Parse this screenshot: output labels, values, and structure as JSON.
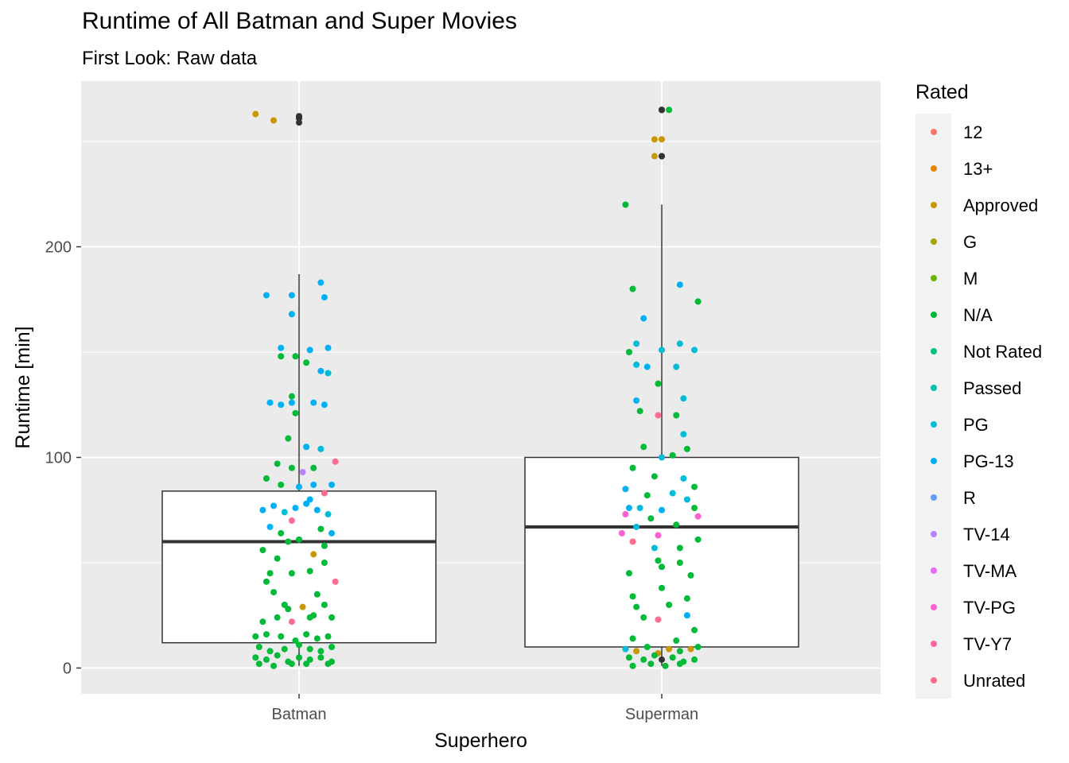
{
  "chart_data": {
    "type": "scatter",
    "subtype": "boxplot-with-jitter",
    "title": "Runtime of All Batman and Super Movies",
    "subtitle": "First Look: Raw data",
    "xlabel": "Superhero",
    "ylabel": "Runtime [min]",
    "categories": [
      "Batman",
      "Superman"
    ],
    "y_ticks": [
      0,
      100,
      200
    ],
    "ylim": [
      -12,
      276
    ],
    "grid": true,
    "legend": {
      "title": "Rated",
      "position": "right",
      "entries": [
        "12",
        "13+",
        "Approved",
        "G",
        "M",
        "N/A",
        "Not Rated",
        "Passed",
        "PG",
        "PG-13",
        "R",
        "TV-14",
        "TV-MA",
        "TV-PG",
        "TV-Y7",
        "Unrated"
      ],
      "colors": [
        "#F8766D",
        "#E58700",
        "#C99800",
        "#A3A500",
        "#6BB100",
        "#00BA38",
        "#00BF7D",
        "#00C0AF",
        "#00BCD8",
        "#00B0F6",
        "#619CFF",
        "#B983FF",
        "#E76BF3",
        "#FD61D1",
        "#FF67A4",
        "#FF6C91"
      ]
    },
    "boxplots": [
      {
        "category": "Batman",
        "q1": 12,
        "median": 60,
        "q3": 84,
        "whisker_low": 1,
        "whisker_high": 187,
        "outliers": [
          262,
          262,
          259
        ]
      },
      {
        "category": "Superman",
        "q1": 10,
        "median": 67,
        "q3": 100,
        "whisker_low": 1,
        "whisker_high": 220,
        "outliers": [
          265,
          265,
          243
        ]
      }
    ],
    "series": [
      {
        "category": "Batman",
        "points": [
          [
            -0.12,
            263,
            "Approved"
          ],
          [
            -0.07,
            260,
            "Approved"
          ],
          [
            0.0,
            261,
            "NA"
          ],
          [
            0.06,
            183,
            "PG-13"
          ],
          [
            -0.09,
            177,
            "PG-13"
          ],
          [
            -0.02,
            177,
            "PG-13"
          ],
          [
            0.07,
            176,
            "PG-13"
          ],
          [
            -0.02,
            168,
            "PG-13"
          ],
          [
            -0.05,
            152,
            "PG-13"
          ],
          [
            0.03,
            151,
            "PG-13"
          ],
          [
            0.08,
            152,
            "PG-13"
          ],
          [
            -0.05,
            148,
            "N/A"
          ],
          [
            -0.01,
            148,
            "N/A"
          ],
          [
            0.02,
            145,
            "N/A"
          ],
          [
            0.06,
            141,
            "PG-13"
          ],
          [
            0.08,
            140,
            "PG"
          ],
          [
            -0.08,
            126,
            "PG-13"
          ],
          [
            -0.05,
            125,
            "PG-13"
          ],
          [
            -0.02,
            126,
            "PG-13"
          ],
          [
            0.04,
            126,
            "PG-13"
          ],
          [
            0.07,
            125,
            "PG-13"
          ],
          [
            -0.02,
            129,
            "N/A"
          ],
          [
            -0.01,
            121,
            "N/A"
          ],
          [
            -0.03,
            109,
            "N/A"
          ],
          [
            0.02,
            105,
            "PG-13"
          ],
          [
            0.06,
            104,
            "PG"
          ],
          [
            0.1,
            98,
            "Unrated"
          ],
          [
            -0.06,
            97,
            "N/A"
          ],
          [
            -0.02,
            95,
            "N/A"
          ],
          [
            0.01,
            93,
            "TV-14"
          ],
          [
            0.04,
            95,
            "N/A"
          ],
          [
            -0.09,
            90,
            "N/A"
          ],
          [
            -0.05,
            87,
            "N/A"
          ],
          [
            0.0,
            86,
            "PG-13"
          ],
          [
            0.04,
            87,
            "PG-13"
          ],
          [
            0.09,
            87,
            "PG-13"
          ],
          [
            -0.1,
            75,
            "PG-13"
          ],
          [
            -0.07,
            77,
            "PG-13"
          ],
          [
            -0.04,
            74,
            "PG"
          ],
          [
            -0.01,
            76,
            "PG-13"
          ],
          [
            0.02,
            78,
            "PG-13"
          ],
          [
            0.05,
            75,
            "PG-13"
          ],
          [
            0.08,
            73,
            "PG"
          ],
          [
            0.07,
            83,
            "Unrated"
          ],
          [
            -0.02,
            70,
            "Unrated"
          ],
          [
            0.03,
            80,
            "PG-13"
          ],
          [
            -0.08,
            67,
            "PG-13"
          ],
          [
            -0.05,
            64,
            "N/A"
          ],
          [
            0.06,
            66,
            "N/A"
          ],
          [
            0.09,
            64,
            "PG-13"
          ],
          [
            -0.03,
            60,
            "N/A"
          ],
          [
            0.0,
            61,
            "N/A"
          ],
          [
            0.07,
            58,
            "N/A"
          ],
          [
            -0.1,
            56,
            "N/A"
          ],
          [
            0.04,
            54,
            "Approved"
          ],
          [
            -0.06,
            52,
            "N/A"
          ],
          [
            0.07,
            50,
            "N/A"
          ],
          [
            -0.08,
            45,
            "N/A"
          ],
          [
            -0.02,
            45,
            "N/A"
          ],
          [
            0.03,
            46,
            "N/A"
          ],
          [
            -0.09,
            41,
            "N/A"
          ],
          [
            0.1,
            41,
            "Unrated"
          ],
          [
            -0.07,
            36,
            "N/A"
          ],
          [
            0.05,
            35,
            "N/A"
          ],
          [
            -0.04,
            30,
            "N/A"
          ],
          [
            0.01,
            29,
            "Approved"
          ],
          [
            0.07,
            30,
            "N/A"
          ],
          [
            -0.03,
            28,
            "N/A"
          ],
          [
            0.04,
            25,
            "N/A"
          ],
          [
            -0.1,
            22,
            "N/A"
          ],
          [
            -0.06,
            24,
            "N/A"
          ],
          [
            -0.02,
            22,
            "Unrated"
          ],
          [
            0.03,
            24,
            "N/A"
          ],
          [
            0.09,
            24,
            "N/A"
          ],
          [
            -0.12,
            15,
            "N/A"
          ],
          [
            -0.09,
            16,
            "N/A"
          ],
          [
            -0.05,
            15,
            "N/A"
          ],
          [
            -0.01,
            13,
            "N/A"
          ],
          [
            0.02,
            16,
            "N/A"
          ],
          [
            0.05,
            14,
            "N/A"
          ],
          [
            0.08,
            15,
            "N/A"
          ],
          [
            -0.11,
            10,
            "N/A"
          ],
          [
            -0.08,
            8,
            "N/A"
          ],
          [
            -0.04,
            9,
            "N/A"
          ],
          [
            0.0,
            11,
            "N/A"
          ],
          [
            0.03,
            9,
            "N/A"
          ],
          [
            0.06,
            8,
            "N/A"
          ],
          [
            0.09,
            10,
            "N/A"
          ],
          [
            -0.12,
            5,
            "N/A"
          ],
          [
            -0.09,
            4,
            "N/A"
          ],
          [
            -0.06,
            6,
            "N/A"
          ],
          [
            -0.03,
            3,
            "N/A"
          ],
          [
            0.0,
            5,
            "N/A"
          ],
          [
            0.03,
            4,
            "N/A"
          ],
          [
            0.06,
            5,
            "N/A"
          ],
          [
            0.09,
            3,
            "N/A"
          ],
          [
            -0.11,
            2,
            "N/A"
          ],
          [
            -0.07,
            1,
            "N/A"
          ],
          [
            -0.02,
            2,
            "N/A"
          ],
          [
            0.02,
            2,
            "N/A"
          ],
          [
            0.08,
            2,
            "N/A"
          ]
        ]
      },
      {
        "category": "Superman",
        "points": [
          [
            0.02,
            265,
            "N/A"
          ],
          [
            0.0,
            265,
            "NA"
          ],
          [
            -0.02,
            251,
            "Approved"
          ],
          [
            0.0,
            251,
            "Approved"
          ],
          [
            -0.02,
            243,
            "Approved"
          ],
          [
            0.0,
            243,
            "NA"
          ],
          [
            -0.1,
            220,
            "N/A"
          ],
          [
            0.05,
            182,
            "PG-13"
          ],
          [
            -0.08,
            180,
            "N/A"
          ],
          [
            0.1,
            174,
            "N/A"
          ],
          [
            -0.05,
            166,
            "PG-13"
          ],
          [
            0.05,
            154,
            "PG"
          ],
          [
            -0.07,
            154,
            "PG"
          ],
          [
            -0.09,
            150,
            "N/A"
          ],
          [
            0.0,
            151,
            "PG"
          ],
          [
            0.09,
            151,
            "PG"
          ],
          [
            -0.07,
            144,
            "PG"
          ],
          [
            -0.04,
            143,
            "PG-13"
          ],
          [
            0.04,
            143,
            "PG"
          ],
          [
            -0.01,
            135,
            "N/A"
          ],
          [
            -0.07,
            127,
            "PG-13"
          ],
          [
            0.06,
            128,
            "PG"
          ],
          [
            -0.06,
            122,
            "N/A"
          ],
          [
            -0.01,
            120,
            "Unrated"
          ],
          [
            0.04,
            120,
            "N/A"
          ],
          [
            0.06,
            111,
            "PG"
          ],
          [
            -0.05,
            105,
            "N/A"
          ],
          [
            0.0,
            100,
            "PG"
          ],
          [
            0.03,
            101,
            "N/A"
          ],
          [
            0.07,
            104,
            "N/A"
          ],
          [
            -0.08,
            95,
            "N/A"
          ],
          [
            -0.02,
            91,
            "N/A"
          ],
          [
            0.06,
            90,
            "PG"
          ],
          [
            -0.1,
            85,
            "PG-13"
          ],
          [
            0.09,
            86,
            "N/A"
          ],
          [
            -0.04,
            82,
            "N/A"
          ],
          [
            0.03,
            83,
            "PG"
          ],
          [
            0.07,
            80,
            "PG"
          ],
          [
            -0.09,
            76,
            "PG-13"
          ],
          [
            -0.06,
            76,
            "PG"
          ],
          [
            0.0,
            75,
            "PG-13"
          ],
          [
            0.09,
            76,
            "N/A"
          ],
          [
            -0.1,
            73,
            "TV-PG"
          ],
          [
            -0.03,
            71,
            "N/A"
          ],
          [
            0.04,
            68,
            "N/A"
          ],
          [
            0.1,
            72,
            "TV-PG"
          ],
          [
            -0.07,
            67,
            "PG"
          ],
          [
            -0.11,
            64,
            "TV-PG"
          ],
          [
            -0.01,
            63,
            "TV-PG"
          ],
          [
            -0.08,
            60,
            "Unrated"
          ],
          [
            0.1,
            61,
            "N/A"
          ],
          [
            -0.02,
            57,
            "PG"
          ],
          [
            0.05,
            57,
            "N/A"
          ],
          [
            -0.01,
            51,
            "N/A"
          ],
          [
            0.0,
            48,
            "N/A"
          ],
          [
            0.05,
            50,
            "N/A"
          ],
          [
            -0.09,
            45,
            "N/A"
          ],
          [
            0.08,
            44,
            "N/A"
          ],
          [
            -0.08,
            34,
            "N/A"
          ],
          [
            0.0,
            38,
            "N/A"
          ],
          [
            0.07,
            33,
            "N/A"
          ],
          [
            -0.07,
            29,
            "N/A"
          ],
          [
            0.02,
            30,
            "N/A"
          ],
          [
            0.07,
            25,
            "PG-13"
          ],
          [
            -0.05,
            24,
            "N/A"
          ],
          [
            -0.01,
            23,
            "Unrated"
          ],
          [
            0.09,
            18,
            "N/A"
          ],
          [
            -0.08,
            14,
            "N/A"
          ],
          [
            0.04,
            13,
            "N/A"
          ],
          [
            -0.1,
            9,
            "PG"
          ],
          [
            -0.07,
            8,
            "Approved"
          ],
          [
            -0.04,
            10,
            "N/A"
          ],
          [
            -0.01,
            7,
            "Approved"
          ],
          [
            0.02,
            9,
            "Approved"
          ],
          [
            0.05,
            8,
            "N/A"
          ],
          [
            0.08,
            9,
            "Approved"
          ],
          [
            0.1,
            10,
            "N/A"
          ],
          [
            -0.09,
            5,
            "N/A"
          ],
          [
            -0.05,
            4,
            "N/A"
          ],
          [
            -0.02,
            6,
            "N/A"
          ],
          [
            0.0,
            4,
            "NA"
          ],
          [
            0.03,
            5,
            "N/A"
          ],
          [
            0.06,
            3,
            "N/A"
          ],
          [
            0.09,
            4,
            "N/A"
          ],
          [
            -0.08,
            1,
            "N/A"
          ],
          [
            -0.03,
            2,
            "N/A"
          ],
          [
            0.01,
            1,
            "N/A"
          ],
          [
            0.05,
            2,
            "N/A"
          ]
        ]
      }
    ]
  }
}
